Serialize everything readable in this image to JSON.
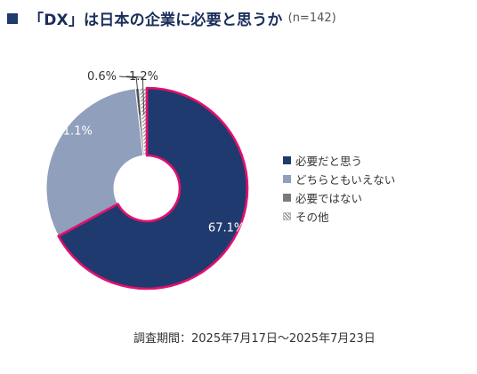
{
  "title": {
    "main": "「DX」は日本の企業に必要と思うか",
    "sample": "(n=142)"
  },
  "chart_data": {
    "type": "pie",
    "donut": true,
    "labels": [
      "必要だと思う",
      "どちらともいえない",
      "必要ではない",
      "その他"
    ],
    "values": [
      67.1,
      31.1,
      0.6,
      1.2
    ],
    "value_labels": [
      "67.1%",
      "31.1%",
      "0.6%",
      "1.2%"
    ],
    "colors": [
      "#1f3a6e",
      "#8f9fbc",
      "#7a7a7a",
      "hatch"
    ],
    "highlight_border_color": "#e3106d",
    "legend_position": "right"
  },
  "legend": [
    {
      "label": "必要だと思う",
      "color": "#1f3a6e"
    },
    {
      "label": "どちらともいえない",
      "color": "#8f9fbc"
    },
    {
      "label": "必要ではない",
      "color": "#7a7a7a"
    },
    {
      "label": "その他",
      "color": "hatch"
    }
  ],
  "footer": {
    "label": "調査期間：",
    "range": "2025年7月17日〜2025年7月23日"
  }
}
